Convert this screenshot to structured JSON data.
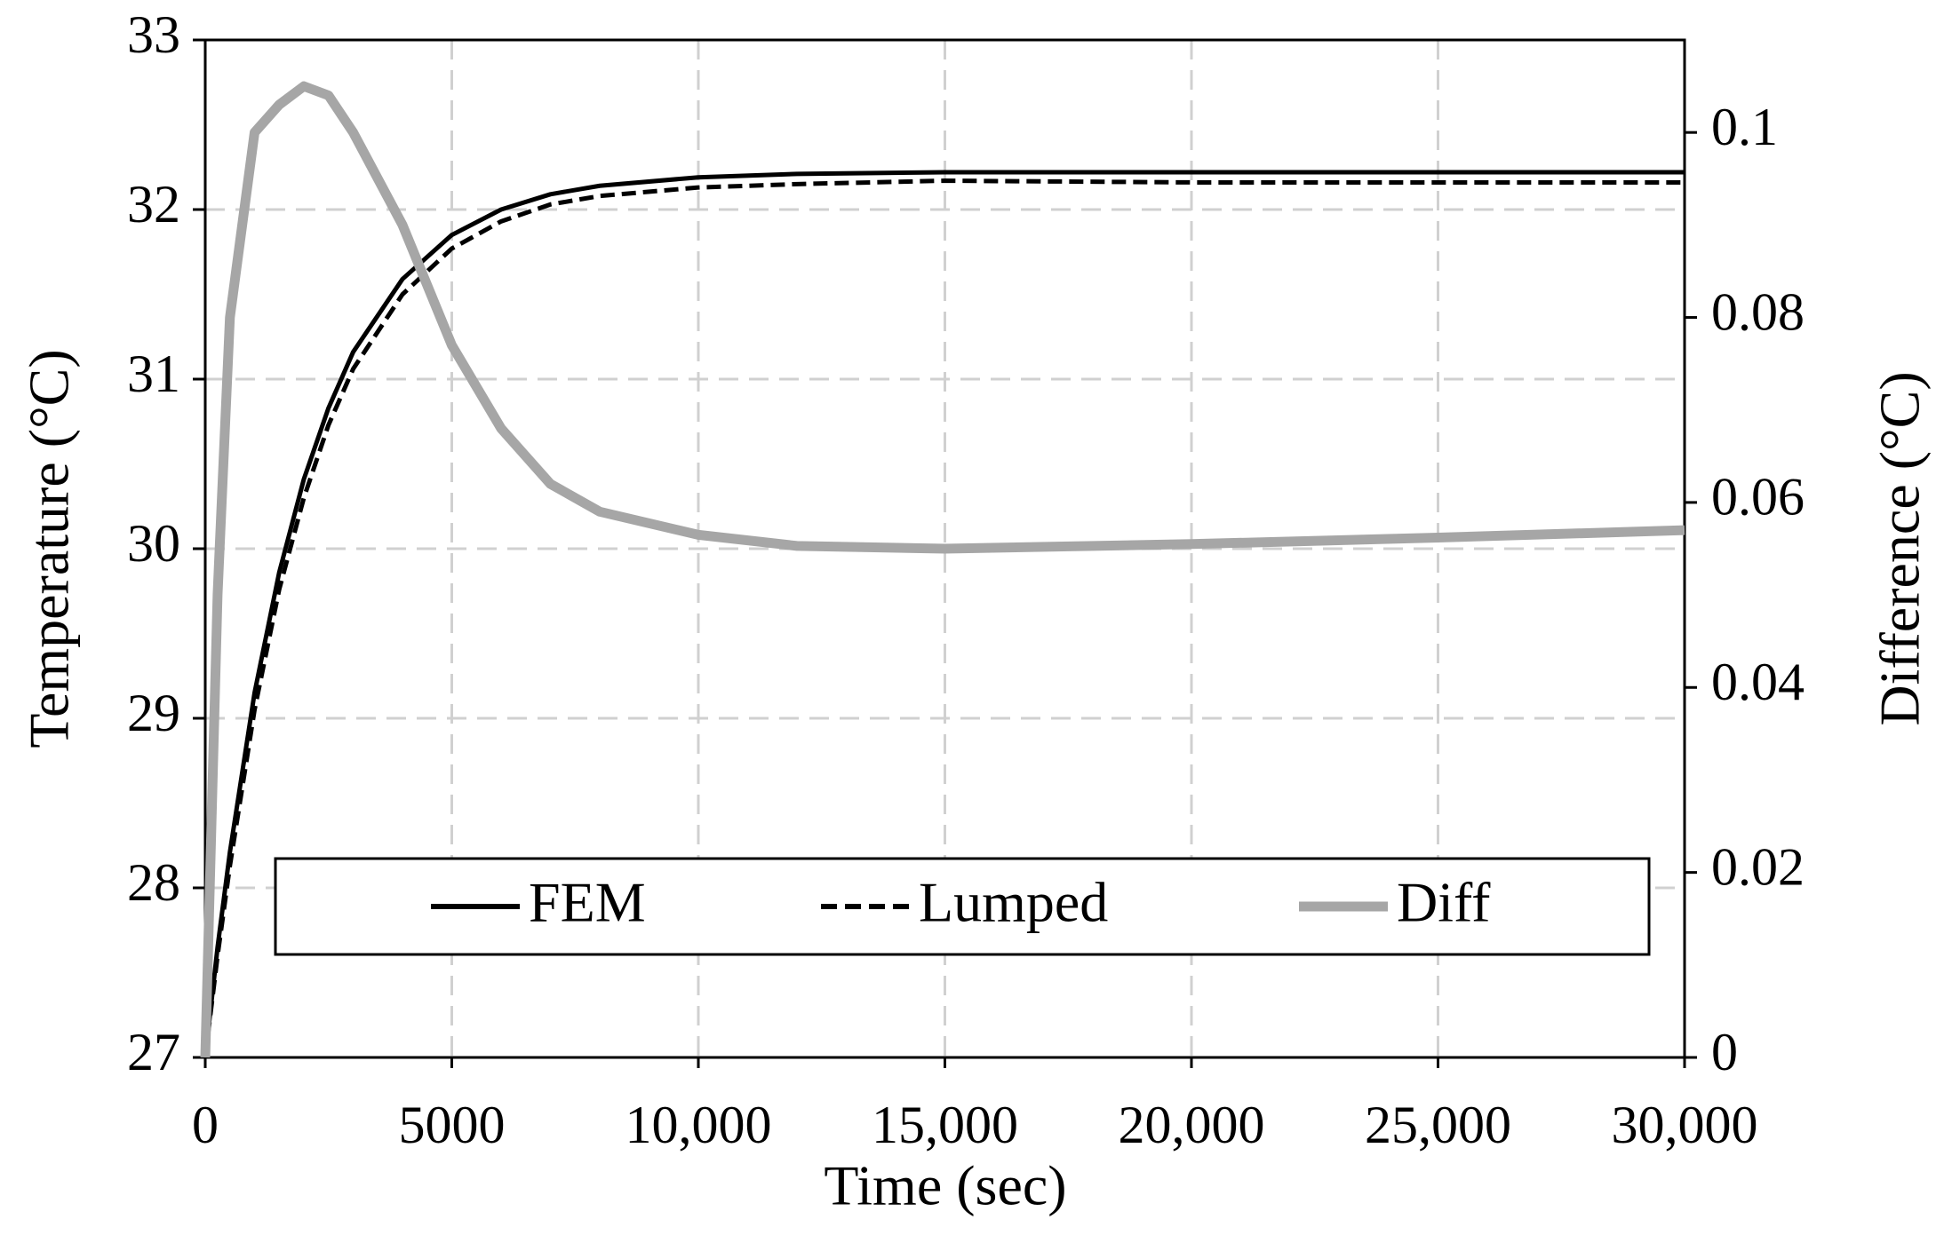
{
  "chart_data": {
    "type": "line",
    "x_label": "Time (sec)",
    "y_label": "Temperature (°C)",
    "y2_label": "Difference (°C)",
    "x": [
      0,
      250,
      500,
      1000,
      1500,
      2000,
      2500,
      3000,
      4000,
      5000,
      6000,
      7000,
      8000,
      10000,
      12000,
      15000,
      20000,
      25000,
      30000
    ],
    "series": [
      {
        "name": "FEM",
        "color": "#000000",
        "style": "solid",
        "values": [
          27,
          27.65,
          28.21,
          29.15,
          29.86,
          30.41,
          30.83,
          31.16,
          31.59,
          31.85,
          32.0,
          32.09,
          32.14,
          32.19,
          32.21,
          32.22,
          32.22,
          32.22,
          32.22
        ]
      },
      {
        "name": "Lumped",
        "color": "#000000",
        "style": "dashed",
        "values": [
          27,
          27.6,
          28.13,
          29.05,
          29.76,
          30.3,
          30.73,
          31.06,
          31.5,
          31.77,
          31.93,
          32.03,
          32.08,
          32.13,
          32.15,
          32.17,
          32.16,
          32.16,
          32.16
        ]
      },
      {
        "name": "Diff",
        "color": "#a6a6a6",
        "style": "solid",
        "axis": "y2",
        "values": [
          0,
          0.05,
          0.08,
          0.1,
          0.103,
          0.105,
          0.104,
          0.1,
          0.09,
          0.077,
          0.068,
          0.062,
          0.059,
          0.0565,
          0.0553,
          0.055,
          0.0555,
          0.0562,
          0.057
        ]
      }
    ],
    "xlim": [
      0,
      30000
    ],
    "xticks": [
      0,
      5000,
      {
        "value": 10000,
        "label": "10,000"
      },
      {
        "value": 15000,
        "label": "15,000"
      },
      {
        "value": 20000,
        "label": "20,000"
      },
      {
        "value": 25000,
        "label": "25,000"
      },
      {
        "value": 30000,
        "label": "30,000"
      }
    ],
    "ylim": [
      27,
      33
    ],
    "yticks": [
      27,
      28,
      29,
      30,
      31,
      32,
      33
    ],
    "y2lim": [
      0,
      0.11
    ],
    "y2ticks": [
      0,
      0.02,
      0.04,
      0.06,
      0.08,
      0.1
    ],
    "grid": true,
    "legend": "bottom"
  }
}
